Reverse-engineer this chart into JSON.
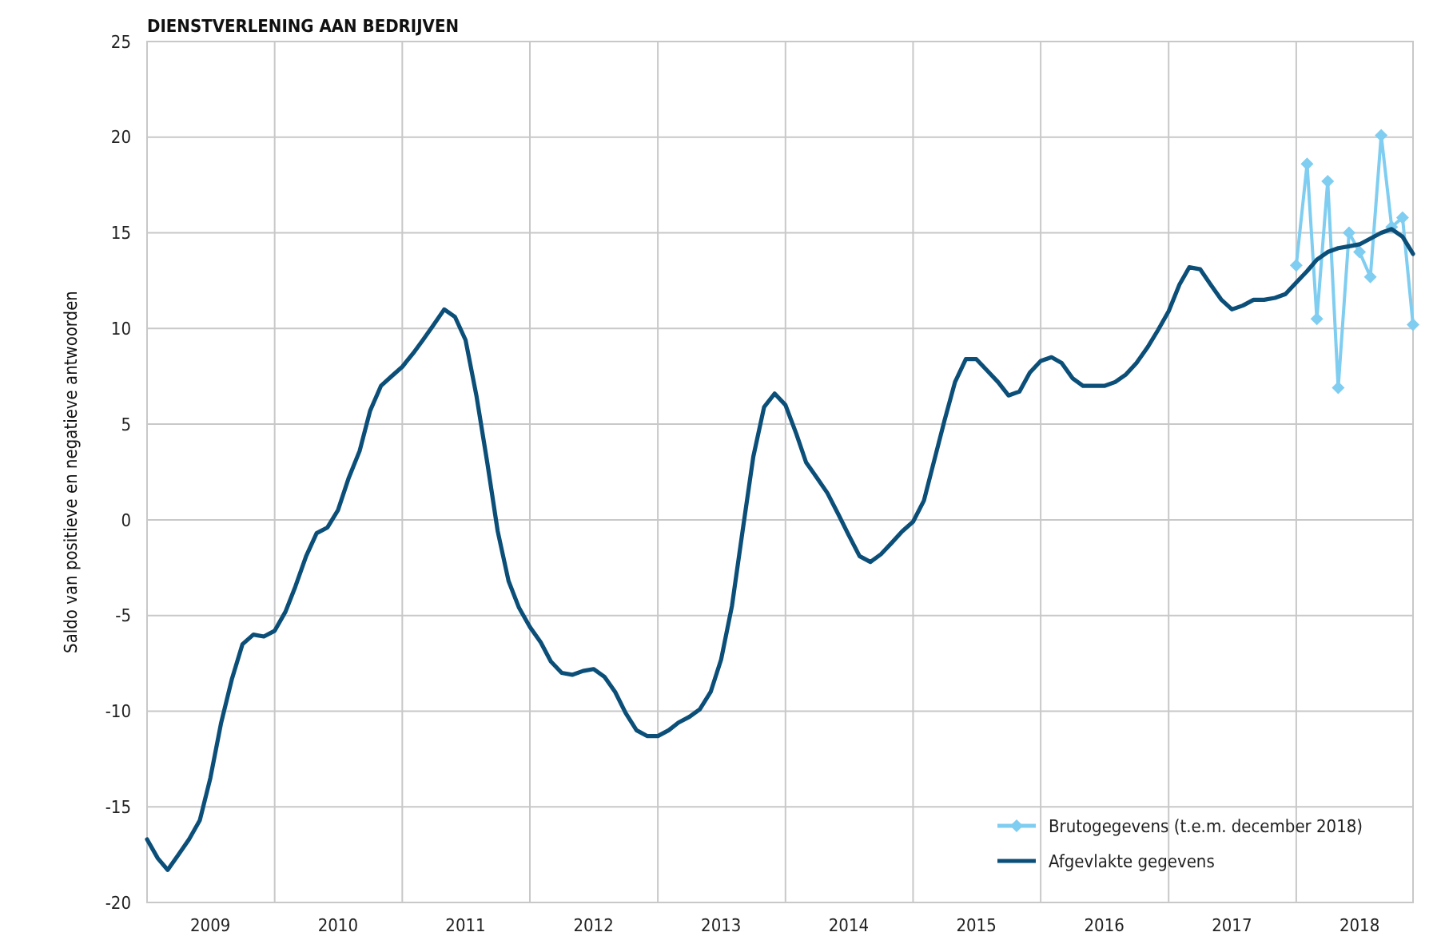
{
  "chart_data": {
    "type": "line",
    "title": "DIENSTVERLENING AAN BEDRIJVEN",
    "ylabel": "Saldo van positieve en negatieve antwoorden",
    "xlim": [
      "2009-01",
      "2018-12"
    ],
    "xticks": [
      {
        "value": "2009-07",
        "label": "2009"
      },
      {
        "value": "2010-01",
        "label": null
      },
      {
        "value": "2010-07",
        "label": "2010"
      },
      {
        "value": "2011-01",
        "label": null
      },
      {
        "value": "2011-07",
        "label": "2011"
      },
      {
        "value": "2012-01",
        "label": null
      },
      {
        "value": "2012-07",
        "label": "2012"
      },
      {
        "value": "2013-01",
        "label": null
      },
      {
        "value": "2013-07",
        "label": "2013"
      },
      {
        "value": "2014-01",
        "label": null
      },
      {
        "value": "2014-07",
        "label": "2014"
      },
      {
        "value": "2015-01",
        "label": null
      },
      {
        "value": "2015-07",
        "label": "2015"
      },
      {
        "value": "2016-01",
        "label": null
      },
      {
        "value": "2016-07",
        "label": "2016"
      },
      {
        "value": "2017-01",
        "label": null
      },
      {
        "value": "2017-07",
        "label": "2017"
      },
      {
        "value": "2018-01",
        "label": null
      },
      {
        "value": "2018-07",
        "label": "2018"
      }
    ],
    "ylim": [
      -20,
      25
    ],
    "yticks": [
      -20,
      -15,
      -10,
      -5,
      0,
      5,
      10,
      15,
      20,
      25
    ],
    "grid": true,
    "legend": "bottom right",
    "series": [
      {
        "name": "Brutogegevens (t.e.m. december 2018)",
        "color": "#7fcdf0",
        "marker": "diamond",
        "x": [
          "2018-01",
          "2018-02",
          "2018-03",
          "2018-04",
          "2018-05",
          "2018-06",
          "2018-07",
          "2018-08",
          "2018-09",
          "2018-10",
          "2018-11",
          "2018-12"
        ],
        "values": [
          13.3,
          18.6,
          10.5,
          17.7,
          6.9,
          15.0,
          14.0,
          12.7,
          20.1,
          15.3,
          15.8,
          10.2
        ]
      },
      {
        "name": "Afgevlakte gegevens",
        "color": "#0b4f79",
        "marker": "none",
        "x": [
          "2009-01",
          "2009-02",
          "2009-03",
          "2009-04",
          "2009-05",
          "2009-06",
          "2009-07",
          "2009-08",
          "2009-09",
          "2009-10",
          "2009-11",
          "2009-12",
          "2010-01",
          "2010-02",
          "2010-03",
          "2010-04",
          "2010-05",
          "2010-06",
          "2010-07",
          "2010-08",
          "2010-09",
          "2010-10",
          "2010-11",
          "2010-12",
          "2011-01",
          "2011-02",
          "2011-03",
          "2011-04",
          "2011-05",
          "2011-06",
          "2011-07",
          "2011-08",
          "2011-09",
          "2011-10",
          "2011-11",
          "2011-12",
          "2012-01",
          "2012-02",
          "2012-03",
          "2012-04",
          "2012-05",
          "2012-06",
          "2012-07",
          "2012-08",
          "2012-09",
          "2012-10",
          "2012-11",
          "2012-12",
          "2013-01",
          "2013-02",
          "2013-03",
          "2013-04",
          "2013-05",
          "2013-06",
          "2013-07",
          "2013-08",
          "2013-09",
          "2013-10",
          "2013-11",
          "2013-12",
          "2014-01",
          "2014-02",
          "2014-03",
          "2014-04",
          "2014-05",
          "2014-06",
          "2014-07",
          "2014-08",
          "2014-09",
          "2014-10",
          "2014-11",
          "2014-12",
          "2015-01",
          "2015-02",
          "2015-03",
          "2015-04",
          "2015-05",
          "2015-06",
          "2015-07",
          "2015-08",
          "2015-09",
          "2015-10",
          "2015-11",
          "2015-12",
          "2016-01",
          "2016-02",
          "2016-03",
          "2016-04",
          "2016-05",
          "2016-06",
          "2016-07",
          "2016-08",
          "2016-09",
          "2016-10",
          "2016-11",
          "2016-12",
          "2017-01",
          "2017-02",
          "2017-03",
          "2017-04",
          "2017-05",
          "2017-06",
          "2017-07",
          "2017-08",
          "2017-09",
          "2017-10",
          "2017-11",
          "2017-12",
          "2018-01",
          "2018-02",
          "2018-03",
          "2018-04",
          "2018-05",
          "2018-06",
          "2018-07",
          "2018-08",
          "2018-09",
          "2018-10",
          "2018-11",
          "2018-12"
        ],
        "values": [
          -16.7,
          -17.7,
          -18.3,
          -17.5,
          -16.7,
          -15.7,
          -13.5,
          -10.6,
          -8.3,
          -6.5,
          -6.0,
          -6.1,
          -5.8,
          -4.8,
          -3.5,
          -1.9,
          -0.7,
          -0.4,
          0.5,
          2.2,
          3.6,
          5.7,
          7.0,
          7.5,
          8.0,
          8.7,
          9.4,
          10.2,
          11.0,
          10.6,
          9.4,
          6.5,
          3.0,
          -0.6,
          -3.2,
          -4.6,
          -5.6,
          -6.4,
          -7.4,
          -8.0,
          -8.1,
          -7.9,
          -7.8,
          -8.2,
          -9.0,
          -10.1,
          -11.0,
          -11.3,
          -11.3,
          -11.0,
          -10.6,
          -10.3,
          -9.9,
          -9.0,
          -7.3,
          -4.5,
          -0.5,
          3.3,
          5.9,
          6.6,
          6.0,
          4.5,
          3.0,
          2.2,
          1.4,
          0.3,
          -0.8,
          -1.9,
          -2.2,
          -1.8,
          -1.2,
          -0.6,
          -0.1,
          1.0,
          3.0,
          5.2,
          7.2,
          8.4,
          8.4,
          7.8,
          7.2,
          6.5,
          6.7,
          7.7,
          8.3,
          8.5,
          8.2,
          7.4,
          7.0,
          7.0,
          7.0,
          7.2,
          7.6,
          8.2,
          9.0,
          9.9,
          10.9,
          12.3,
          13.2,
          13.1,
          12.3,
          11.5,
          11.0,
          11.2,
          11.5,
          11.5,
          11.6,
          11.8,
          12.4,
          13.0,
          13.6,
          14.0,
          14.2,
          14.3,
          14.4,
          14.7,
          15.0,
          15.2,
          14.8,
          13.9
        ]
      }
    ]
  }
}
